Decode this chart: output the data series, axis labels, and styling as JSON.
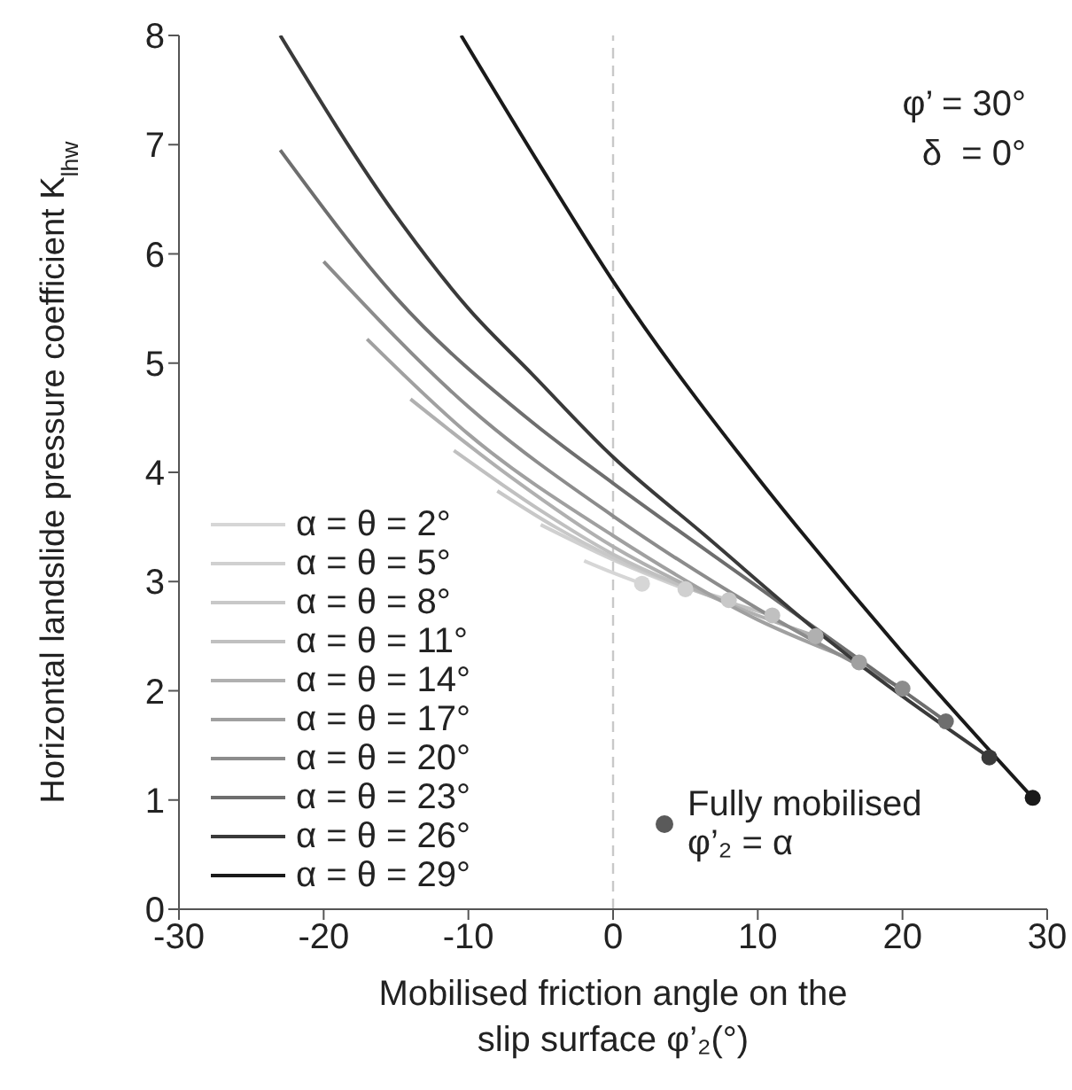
{
  "chart_data": {
    "type": "line",
    "xlabel": "Mobilised friction angle on the slip surface φ’₂(°)",
    "ylabel": "Horizontal landslide pressure coefficient K$_{lhw}$",
    "xlim": [
      -30,
      30
    ],
    "xticks": [
      -30,
      -20,
      -10,
      0,
      10,
      20,
      30
    ],
    "ylim": [
      0,
      8
    ],
    "yticks": [
      0,
      1,
      2,
      3,
      4,
      5,
      6,
      7,
      8
    ],
    "grid": false,
    "legend": "bottom left",
    "marker": "none",
    "line_style": "solid",
    "ref_lines": [
      {
        "axis": "x",
        "value": 0,
        "color": "#c8c8c8",
        "line_style": "dashed"
      }
    ],
    "annotations": [
      "φ’ = 30°",
      "δ  = 0°"
    ],
    "series": [
      {
        "name": "α = θ = 2°",
        "color": "#d6d6d6",
        "x": [
          -2,
          0,
          2
        ],
        "values": [
          3.19,
          3.08,
          2.98
        ]
      },
      {
        "name": "α = θ = 5°",
        "color": "#d0d0d0",
        "x": [
          -5,
          0,
          5
        ],
        "values": [
          3.52,
          3.2,
          2.93
        ]
      },
      {
        "name": "α = θ = 8°",
        "color": "#c8c8c8",
        "x": [
          -8,
          -4,
          0,
          4,
          8
        ],
        "values": [
          3.83,
          3.5,
          3.22,
          3.0,
          2.83
        ]
      },
      {
        "name": "α = θ = 11°",
        "color": "#c0c0c0",
        "x": [
          -11,
          -5,
          0,
          5,
          11
        ],
        "values": [
          4.2,
          3.65,
          3.25,
          2.95,
          2.69
        ]
      },
      {
        "name": "α = θ = 14°",
        "color": "#b0b0b0",
        "x": [
          -14,
          -7,
          0,
          7,
          14
        ],
        "values": [
          4.67,
          3.95,
          3.32,
          2.85,
          2.5
        ]
      },
      {
        "name": "α = θ = 17°",
        "color": "#a0a0a0",
        "x": [
          -17,
          -10,
          0,
          10,
          17
        ],
        "values": [
          5.22,
          4.35,
          3.42,
          2.65,
          2.26
        ]
      },
      {
        "name": "α = θ = 20°",
        "color": "#8c8c8c",
        "x": [
          -20,
          -10,
          0,
          10,
          20
        ],
        "values": [
          5.93,
          4.6,
          3.6,
          2.75,
          2.02
        ]
      },
      {
        "name": "α = θ = 23°",
        "color": "#6e6e6e",
        "x": [
          -23,
          -15,
          -5.6,
          0,
          10,
          23
        ],
        "values": [
          6.95,
          5.6,
          4.46,
          3.9,
          2.95,
          1.72
        ]
      },
      {
        "name": "α = θ = 26°",
        "color": "#3a3a3a",
        "x": [
          -23,
          -15,
          -10,
          -5.6,
          0,
          6.2,
          15,
          26
        ],
        "values": [
          8,
          6.35,
          5.5,
          4.9,
          4.14,
          3.44,
          2.45,
          1.39
        ]
      },
      {
        "name": "α = θ = 29°",
        "color": "#1a1a1a",
        "x": [
          -10.5,
          -5,
          0,
          10,
          13.1,
          20,
          29
        ],
        "values": [
          8,
          6.8,
          5.75,
          3.95,
          3.44,
          2.35,
          1.02
        ]
      },
      {
        "name": "Fully mobilised φ’₂ = α",
        "type": "scatter",
        "marker": "circle",
        "color": "#5a5a5a",
        "x": [
          2,
          5,
          8,
          11,
          14,
          17,
          20,
          23,
          26,
          29
        ],
        "values": [
          2.98,
          2.93,
          2.83,
          2.69,
          2.5,
          2.26,
          2.02,
          1.72,
          1.39,
          1.02
        ],
        "colors": [
          "#d6d6d6",
          "#d0d0d0",
          "#c8c8c8",
          "#c0c0c0",
          "#b0b0b0",
          "#a0a0a0",
          "#8c8c8c",
          "#6e6e6e",
          "#3a3a3a",
          "#1a1a1a"
        ]
      }
    ]
  }
}
